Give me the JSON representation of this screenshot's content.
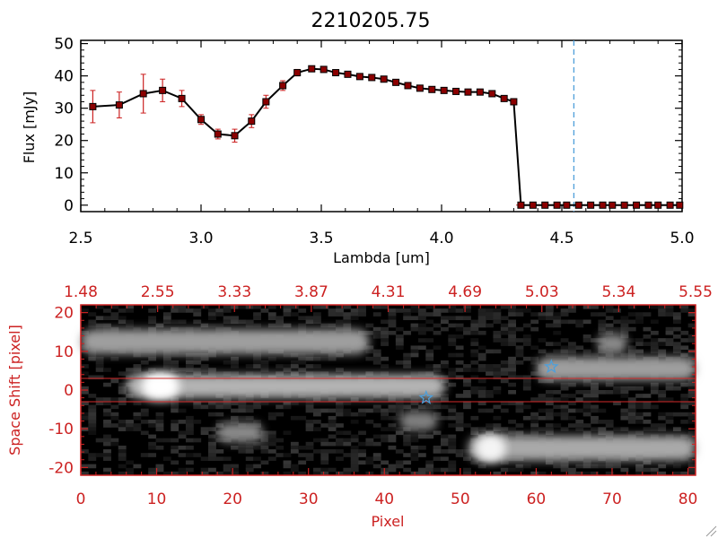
{
  "chart_data": [
    {
      "type": "line",
      "title": "2210205.75",
      "xlabel": "Lambda [um]",
      "ylabel": "Flux [mJy]",
      "xlim": [
        2.5,
        5.0
      ],
      "ylim": [
        -2,
        51
      ],
      "xticks": [
        "2.5",
        "3.0",
        "3.5",
        "4.0",
        "4.5",
        "5.0"
      ],
      "yticks": [
        "0",
        "10",
        "20",
        "30",
        "40",
        "50"
      ],
      "vline_x": 4.55,
      "colors": {
        "line": "#000000",
        "marker": "#8b0000",
        "errorbar": "#cc2222",
        "vline": "#4f9fd9"
      },
      "series": [
        {
          "name": "flux",
          "x": [
            2.55,
            2.66,
            2.76,
            2.84,
            2.92,
            3.0,
            3.07,
            3.14,
            3.21,
            3.27,
            3.34,
            3.4,
            3.46,
            3.51,
            3.56,
            3.61,
            3.66,
            3.71,
            3.76,
            3.81,
            3.86,
            3.91,
            3.96,
            4.01,
            4.06,
            4.11,
            4.16,
            4.21,
            4.26,
            4.3,
            4.33,
            4.38,
            4.43,
            4.48,
            4.52,
            4.57,
            4.62,
            4.67,
            4.71,
            4.76,
            4.81,
            4.86,
            4.9,
            4.95,
            4.99
          ],
          "y": [
            30.5,
            31,
            34.5,
            35.5,
            33,
            26.5,
            22,
            21.5,
            26,
            32,
            37,
            41,
            42.2,
            42,
            41,
            40.5,
            39.8,
            39.5,
            39,
            38,
            37,
            36.2,
            35.8,
            35.5,
            35.2,
            35,
            35,
            34.5,
            33,
            32,
            0,
            0,
            0,
            0,
            0,
            0,
            0,
            0,
            0,
            0,
            0,
            0,
            0,
            0,
            0
          ],
          "err": [
            5,
            4,
            6,
            3.5,
            2.5,
            1.5,
            1.5,
            2,
            2,
            2,
            1.5,
            1,
            0.5,
            0.5,
            0.5,
            0.5,
            0.5,
            0.5,
            0.5,
            0.5,
            0.5,
            0.5,
            0.5,
            0.5,
            0.5,
            0.5,
            0.5,
            0.5,
            0.5,
            0.5,
            0,
            0,
            0,
            0,
            0,
            0,
            0,
            0,
            0,
            0,
            0,
            0,
            0,
            0,
            0
          ]
        }
      ]
    },
    {
      "type": "heatmap",
      "xlabel": "Pixel",
      "ylabel": "Space Shift [pixel]",
      "xlim": [
        0,
        81
      ],
      "ylim": [
        -22,
        22
      ],
      "xticks": [
        "0",
        "10",
        "20",
        "30",
        "40",
        "50",
        "60",
        "70",
        "80"
      ],
      "yticks": [
        "-20",
        "-10",
        "0",
        "10",
        "20"
      ],
      "top_ticks": [
        "1.48",
        "2.55",
        "3.33",
        "3.87",
        "4.31",
        "4.69",
        "5.03",
        "5.34",
        "5.55"
      ],
      "hlines": [
        3,
        -3
      ],
      "stars": [
        {
          "x": 45.5,
          "y": -2
        },
        {
          "x": 62,
          "y": 6
        }
      ],
      "colors": {
        "axis": "#cc2222",
        "star": "#4f9fd9",
        "background": "#000000"
      },
      "sources": [
        {
          "x0": 0,
          "x1": 38,
          "y": 12.5,
          "halfheight": 3.2,
          "brightness": 0.55
        },
        {
          "x0": 6,
          "x1": 48,
          "y": 1,
          "halfheight": 3,
          "brightness": 0.65
        },
        {
          "x0": 8,
          "x1": 13,
          "y": 1,
          "halfheight": 3.6,
          "brightness": 1.0
        },
        {
          "x0": 51,
          "x1": 81,
          "y": -15,
          "halfheight": 3.2,
          "brightness": 0.6
        },
        {
          "x0": 52,
          "x1": 56,
          "y": -15,
          "halfheight": 3.6,
          "brightness": 0.95
        },
        {
          "x0": 60,
          "x1": 81,
          "y": 5.5,
          "halfheight": 3,
          "brightness": 0.55
        },
        {
          "x0": 18,
          "x1": 24,
          "y": -11,
          "halfheight": 2.5,
          "brightness": 0.45
        },
        {
          "x0": 42,
          "x1": 47,
          "y": -8,
          "halfheight": 2.5,
          "brightness": 0.4
        },
        {
          "x0": 68,
          "x1": 72,
          "y": 12,
          "halfheight": 2.5,
          "brightness": 0.45
        }
      ]
    }
  ]
}
